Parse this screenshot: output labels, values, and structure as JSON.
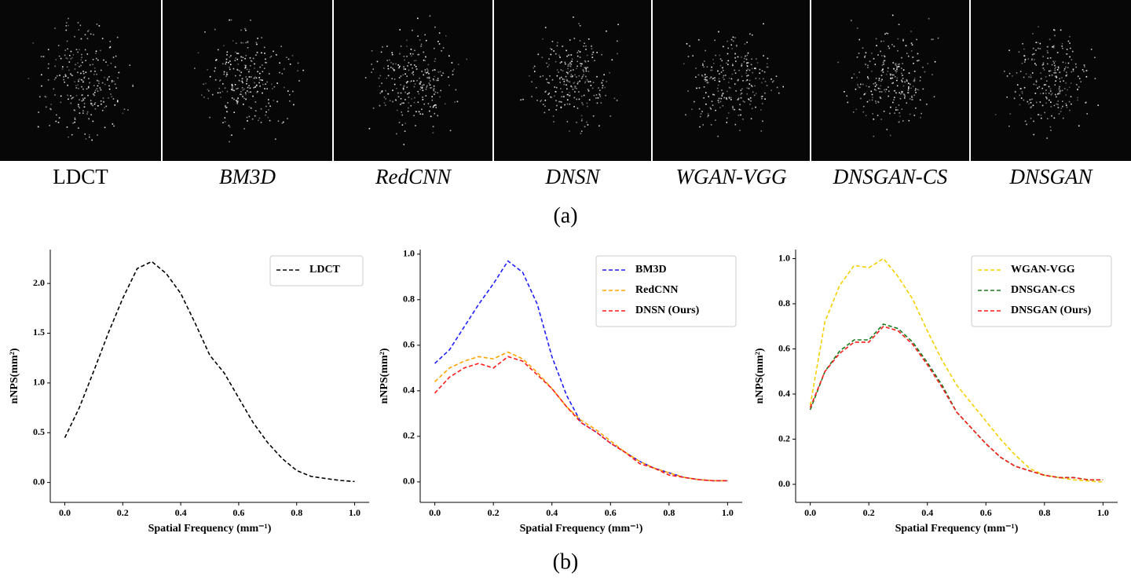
{
  "panel_a": {
    "labels": [
      "LDCT",
      "BM3D",
      "RedCNN",
      "DNSN",
      "WGAN-VGG",
      "DNSGAN-CS",
      "DNSGAN"
    ],
    "caption": "(a)"
  },
  "panel_b": {
    "caption": "(b)"
  },
  "chart_data": [
    {
      "type": "line",
      "xlabel": "Spatial Frequency (mm⁻¹)",
      "ylabel": "nNPS(mm²)",
      "x": [
        0,
        0.05,
        0.1,
        0.15,
        0.2,
        0.25,
        0.3,
        0.35,
        0.4,
        0.45,
        0.5,
        0.55,
        0.6,
        0.65,
        0.7,
        0.75,
        0.8,
        0.85,
        0.9,
        0.95,
        1.0
      ],
      "series": [
        {
          "name": "LDCT",
          "color": "#000000",
          "values": [
            0.45,
            0.75,
            1.12,
            1.5,
            1.85,
            2.15,
            2.22,
            2.1,
            1.9,
            1.6,
            1.28,
            1.1,
            0.85,
            0.6,
            0.4,
            0.24,
            0.12,
            0.06,
            0.04,
            0.02,
            0.01
          ]
        }
      ],
      "xlim": [
        -0.05,
        1.05
      ],
      "ylim": [
        -0.2,
        2.34
      ],
      "xticks": [
        {
          "value": 0,
          "label": "0.0"
        },
        0.2,
        0.4,
        0.6,
        0.8,
        {
          "value": 1,
          "label": "1.0"
        }
      ],
      "yticks": [
        {
          "value": 0,
          "label": "0.0"
        },
        0.5,
        {
          "value": 1,
          "label": "1.0"
        },
        1.5,
        {
          "value": 2,
          "label": "2.0"
        }
      ],
      "legend": "upper-right"
    },
    {
      "type": "line",
      "xlabel": "Spatial Frequency (mm⁻¹)",
      "ylabel": "nNPS(mm²)",
      "x": [
        0,
        0.05,
        0.1,
        0.15,
        0.2,
        0.25,
        0.3,
        0.35,
        0.4,
        0.45,
        0.5,
        0.55,
        0.6,
        0.65,
        0.7,
        0.75,
        0.8,
        0.85,
        0.9,
        0.95,
        1.0
      ],
      "series": [
        {
          "name": "BM3D",
          "color": "#1f1fff",
          "values": [
            0.52,
            0.58,
            0.68,
            0.78,
            0.87,
            0.97,
            0.92,
            0.78,
            0.55,
            0.38,
            0.26,
            0.22,
            0.17,
            0.13,
            0.09,
            0.06,
            0.04,
            0.02,
            0.01,
            0.005,
            0.005
          ]
        },
        {
          "name": "RedCNN",
          "color": "#ffa500",
          "values": [
            0.44,
            0.5,
            0.53,
            0.55,
            0.54,
            0.57,
            0.54,
            0.48,
            0.41,
            0.33,
            0.27,
            0.23,
            0.18,
            0.13,
            0.09,
            0.06,
            0.04,
            0.02,
            0.01,
            0.005,
            0.005
          ]
        },
        {
          "name": "DNSN (Ours)",
          "color": "#ff1a1a",
          "values": [
            0.39,
            0.46,
            0.5,
            0.52,
            0.5,
            0.55,
            0.53,
            0.47,
            0.41,
            0.33,
            0.26,
            0.22,
            0.17,
            0.13,
            0.08,
            0.06,
            0.03,
            0.02,
            0.01,
            0.005,
            0.005
          ]
        }
      ],
      "xlim": [
        -0.05,
        1.05
      ],
      "ylim": [
        -0.09,
        1.02
      ],
      "xticks": [
        {
          "value": 0,
          "label": "0.0"
        },
        0.2,
        0.4,
        0.6,
        0.8,
        {
          "value": 1,
          "label": "1.0"
        }
      ],
      "yticks": [
        {
          "value": 0,
          "label": "0.0"
        },
        0.2,
        0.4,
        0.6,
        0.8,
        {
          "value": 1,
          "label": "1.0"
        }
      ],
      "legend": "upper-right"
    },
    {
      "type": "line",
      "xlabel": "Spatial Frequency (mm⁻¹)",
      "ylabel": "nNPS(mm²)",
      "x": [
        0,
        0.05,
        0.1,
        0.15,
        0.2,
        0.25,
        0.3,
        0.35,
        0.4,
        0.45,
        0.5,
        0.55,
        0.6,
        0.65,
        0.7,
        0.75,
        0.8,
        0.85,
        0.9,
        0.95,
        1.0
      ],
      "series": [
        {
          "name": "WGAN-VGG",
          "color": "#f5d000",
          "values": [
            0.35,
            0.72,
            0.88,
            0.97,
            0.96,
            1.0,
            0.92,
            0.82,
            0.68,
            0.55,
            0.44,
            0.36,
            0.28,
            0.2,
            0.13,
            0.07,
            0.04,
            0.03,
            0.02,
            0.015,
            0.01
          ]
        },
        {
          "name": "DNSGAN-CS",
          "color": "#1a7a1a",
          "values": [
            0.33,
            0.5,
            0.59,
            0.64,
            0.64,
            0.71,
            0.69,
            0.63,
            0.54,
            0.44,
            0.32,
            0.25,
            0.18,
            0.12,
            0.08,
            0.06,
            0.04,
            0.03,
            0.03,
            0.02,
            0.02
          ]
        },
        {
          "name": "DNSGAN (Ours)",
          "color": "#ff1a1a",
          "values": [
            0.34,
            0.5,
            0.58,
            0.63,
            0.63,
            0.7,
            0.68,
            0.62,
            0.53,
            0.43,
            0.32,
            0.25,
            0.18,
            0.12,
            0.08,
            0.06,
            0.04,
            0.03,
            0.03,
            0.02,
            0.02
          ]
        }
      ],
      "xlim": [
        -0.05,
        1.05
      ],
      "ylim": [
        -0.08,
        1.04
      ],
      "xticks": [
        {
          "value": 0,
          "label": "0.0"
        },
        0.2,
        0.4,
        0.6,
        0.8,
        {
          "value": 1,
          "label": "1.0"
        }
      ],
      "yticks": [
        {
          "value": 0,
          "label": "0.0"
        },
        0.2,
        0.4,
        0.6,
        0.8,
        {
          "value": 1,
          "label": "1.0"
        }
      ],
      "legend": "upper-right"
    }
  ]
}
